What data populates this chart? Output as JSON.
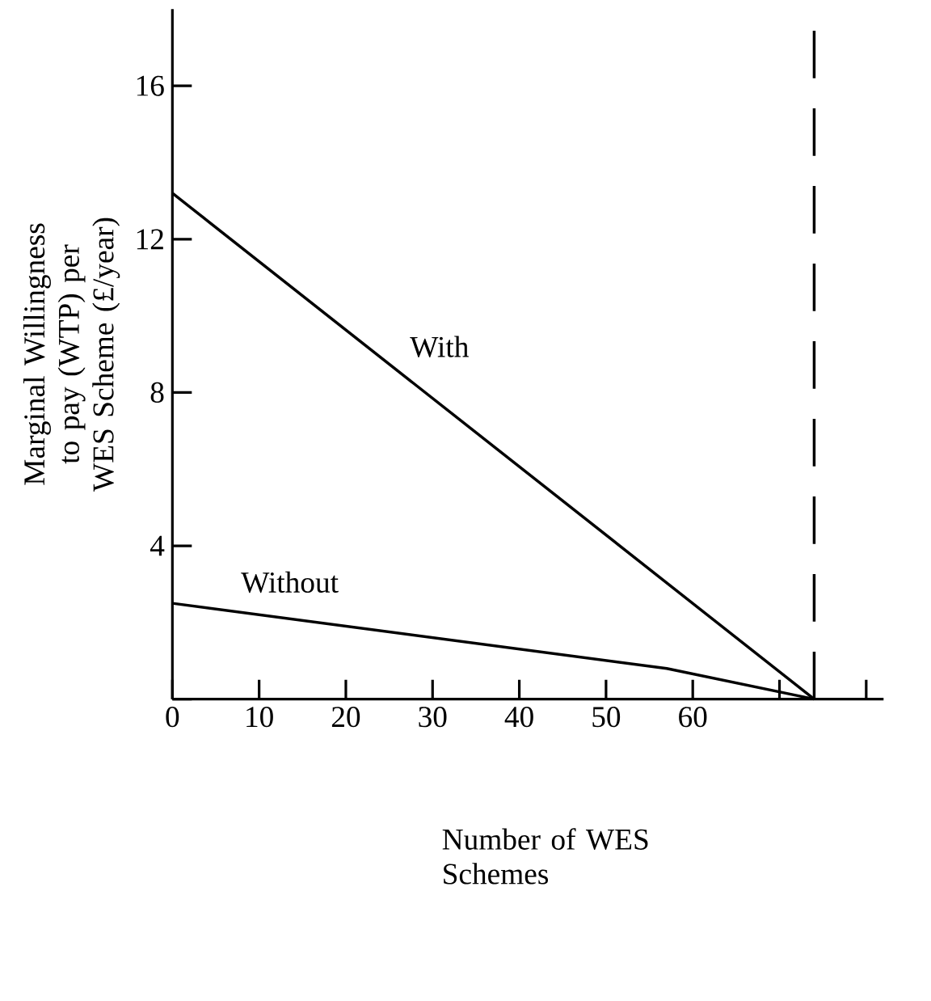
{
  "chart_data": {
    "type": "line",
    "xlabel": "Number of WES Schemes",
    "ylabel": "Marginal Willingness to pay (WTP) per WES Scheme (£/year)",
    "xlim": [
      0,
      82
    ],
    "ylim": [
      0,
      18
    ],
    "xticks": [
      0,
      10,
      20,
      30,
      40,
      50,
      60,
      {
        "value": 70,
        "label": null
      },
      {
        "value": 80,
        "label": null
      }
    ],
    "yticks": [
      {
        "value": 0,
        "label": null
      },
      4,
      8,
      12,
      16
    ],
    "series": [
      {
        "name": "With",
        "color": "#000000",
        "x": [
          0,
          74
        ],
        "values": [
          13.2,
          0
        ]
      },
      {
        "name": "Without",
        "color": "#000000",
        "x": [
          0,
          57,
          74
        ],
        "values": [
          2.5,
          0.8,
          0
        ]
      }
    ],
    "ref_lines": [
      {
        "axis": "x",
        "value": 74,
        "line_style": "dashed"
      }
    ],
    "grid": false,
    "legend": false,
    "marker": "none",
    "line_style": "solid"
  }
}
